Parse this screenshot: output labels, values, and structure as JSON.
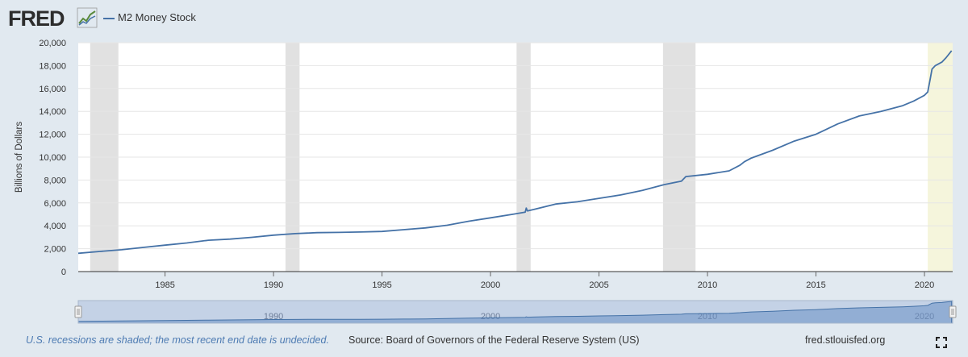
{
  "header": {
    "logo": "FRED",
    "logo_icon": "chart-line-icon",
    "legend_label": "M2 Money Stock"
  },
  "footer": {
    "recession_note": "U.S. recessions are shaded; the most recent end date is undecided.",
    "source": "Source: Board of Governors of the Federal Reserve System (US)",
    "url": "fred.stlouisfed.org",
    "fullscreen_icon": "fullscreen-icon"
  },
  "colors": {
    "series": "#4572a7",
    "recession": "#e1e1e1",
    "undecided": "#f5f5dc",
    "background": "#e1e9f0",
    "plot": "#ffffff"
  },
  "chart_data": {
    "type": "line",
    "title": "",
    "xlabel": "",
    "ylabel": "Billions of Dollars",
    "xlim": [
      1981.0,
      2021.3
    ],
    "ylim": [
      0,
      20000
    ],
    "yticks": [
      0,
      2000,
      4000,
      6000,
      8000,
      10000,
      12000,
      14000,
      16000,
      18000,
      20000
    ],
    "ytick_labels": [
      "0",
      "2,000",
      "4,000",
      "6,000",
      "8,000",
      "10,000",
      "12,000",
      "14,000",
      "16,000",
      "18,000",
      "20,000"
    ],
    "xticks": [
      1985,
      1990,
      1995,
      2000,
      2005,
      2010,
      2015,
      2020
    ],
    "xtick_labels": [
      "1985",
      "1990",
      "1995",
      "2000",
      "2005",
      "2010",
      "2015",
      "2020"
    ],
    "grid": "horizontal",
    "recessions": [
      {
        "start": 1981.55,
        "end": 1982.85
      },
      {
        "start": 1990.55,
        "end": 1991.2
      },
      {
        "start": 2001.2,
        "end": 2001.85
      },
      {
        "start": 2007.95,
        "end": 2009.45
      }
    ],
    "undecided_recession": {
      "start": 2020.15,
      "end": 2021.3
    },
    "navigator_labels": [
      "1990",
      "2000",
      "2010",
      "2020"
    ],
    "series": [
      {
        "name": "M2 Money Stock",
        "x": [
          1981.0,
          1982.0,
          1983.0,
          1984.0,
          1985.0,
          1986.0,
          1987.0,
          1988.0,
          1989.0,
          1990.0,
          1991.0,
          1992.0,
          1993.0,
          1994.0,
          1995.0,
          1996.0,
          1997.0,
          1998.0,
          1999.0,
          2000.0,
          2001.0,
          2001.6,
          2001.65,
          2001.7,
          2002.0,
          2003.0,
          2004.0,
          2005.0,
          2006.0,
          2007.0,
          2008.0,
          2008.8,
          2009.0,
          2010.0,
          2011.0,
          2011.5,
          2011.7,
          2012.0,
          2013.0,
          2014.0,
          2015.0,
          2016.0,
          2017.0,
          2018.0,
          2019.0,
          2019.5,
          2020.0,
          2020.15,
          2020.25,
          2020.35,
          2020.5,
          2020.8,
          2021.0,
          2021.25
        ],
        "y": [
          1600,
          1760,
          1910,
          2110,
          2310,
          2500,
          2740,
          2840,
          2990,
          3180,
          3320,
          3400,
          3420,
          3460,
          3510,
          3660,
          3820,
          4050,
          4400,
          4700,
          5000,
          5200,
          5550,
          5300,
          5430,
          5900,
          6100,
          6400,
          6700,
          7100,
          7600,
          7900,
          8300,
          8500,
          8800,
          9300,
          9600,
          9900,
          10600,
          11400,
          12000,
          12900,
          13600,
          14000,
          14500,
          14900,
          15400,
          15700,
          16700,
          17700,
          18000,
          18300,
          18700,
          19300
        ]
      }
    ]
  }
}
